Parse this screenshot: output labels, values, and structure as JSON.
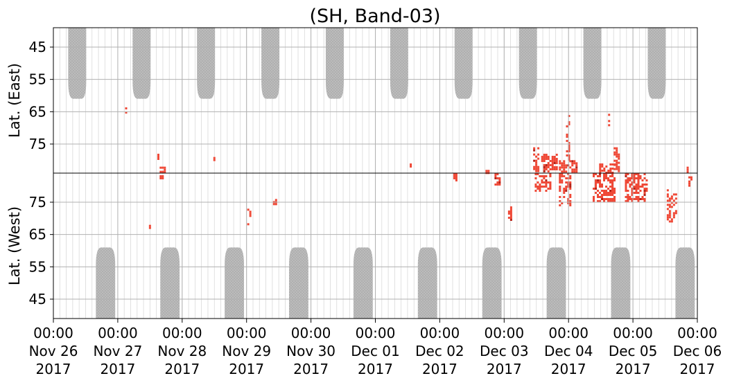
{
  "chart_data": {
    "type": "heatmap",
    "title": "(SH, Band-03)",
    "panels": [
      {
        "name": "east",
        "ylabel": "Lat. (East)",
        "yticks": [
          "45",
          "55",
          "65",
          "75"
        ],
        "ylim_top_to_bottom": [
          39,
          84
        ]
      },
      {
        "name": "west",
        "ylabel": "Lat. (West)",
        "yticks": [
          "75",
          "65",
          "55",
          "45"
        ],
        "ylim_top_to_bottom": [
          84,
          39
        ]
      }
    ],
    "x_ticks": [
      {
        "time": "00:00",
        "date": "Nov 26",
        "year": "2017"
      },
      {
        "time": "00:00",
        "date": "Nov 27",
        "year": "2017"
      },
      {
        "time": "00:00",
        "date": "Nov 28",
        "year": "2017"
      },
      {
        "time": "00:00",
        "date": "Nov 29",
        "year": "2017"
      },
      {
        "time": "00:00",
        "date": "Nov 30",
        "year": "2017"
      },
      {
        "time": "00:00",
        "date": "Dec 01",
        "year": "2017"
      },
      {
        "time": "00:00",
        "date": "Dec 02",
        "year": "2017"
      },
      {
        "time": "00:00",
        "date": "Dec 03",
        "year": "2017"
      },
      {
        "time": "00:00",
        "date": "Dec 04",
        "year": "2017"
      },
      {
        "time": "00:00",
        "date": "Dec 05",
        "year": "2017"
      },
      {
        "time": "00:00",
        "date": "Dec 06",
        "year": "2017"
      }
    ],
    "grid": true,
    "no_data_color": "#bdbdbd",
    "echo_color": "#ef4836",
    "echo_color_strong": "#b52318",
    "no_data_regions": {
      "east": [
        {
          "center_day": 0.37,
          "half_width_days": 0.14,
          "min_lat": 61
        },
        {
          "center_day": 1.37,
          "half_width_days": 0.14,
          "min_lat": 61
        },
        {
          "center_day": 2.37,
          "half_width_days": 0.14,
          "min_lat": 61
        },
        {
          "center_day": 3.37,
          "half_width_days": 0.14,
          "min_lat": 61
        },
        {
          "center_day": 4.37,
          "half_width_days": 0.14,
          "min_lat": 61
        },
        {
          "center_day": 5.37,
          "half_width_days": 0.14,
          "min_lat": 61
        },
        {
          "center_day": 6.37,
          "half_width_days": 0.14,
          "min_lat": 61
        },
        {
          "center_day": 7.37,
          "half_width_days": 0.14,
          "min_lat": 61
        },
        {
          "center_day": 8.37,
          "half_width_days": 0.14,
          "min_lat": 61
        },
        {
          "center_day": 9.37,
          "half_width_days": 0.14,
          "min_lat": 61
        }
      ],
      "west": [
        {
          "center_day": 0.81,
          "half_width_days": 0.15,
          "min_lat": 61
        },
        {
          "center_day": 1.81,
          "half_width_days": 0.15,
          "min_lat": 61
        },
        {
          "center_day": 2.81,
          "half_width_days": 0.15,
          "min_lat": 61
        },
        {
          "center_day": 3.81,
          "half_width_days": 0.15,
          "min_lat": 61
        },
        {
          "center_day": 4.81,
          "half_width_days": 0.15,
          "min_lat": 61
        },
        {
          "center_day": 5.81,
          "half_width_days": 0.15,
          "min_lat": 61
        },
        {
          "center_day": 6.81,
          "half_width_days": 0.15,
          "min_lat": 61
        },
        {
          "center_day": 7.81,
          "half_width_days": 0.15,
          "min_lat": 61
        },
        {
          "center_day": 8.81,
          "half_width_days": 0.15,
          "min_lat": 61
        },
        {
          "center_day": 9.81,
          "half_width_days": 0.15,
          "min_lat": 61
        }
      ]
    },
    "echo_patches": [
      {
        "panel": "east",
        "day": 1.13,
        "lat_min": 63,
        "lat_max": 66,
        "width_days": 0.02
      },
      {
        "panel": "east",
        "day": 1.63,
        "lat_min": 78,
        "lat_max": 81,
        "width_days": 0.02
      },
      {
        "panel": "east",
        "day": 1.7,
        "lat_min": 82,
        "lat_max": 84,
        "width_days": 0.1
      },
      {
        "panel": "east",
        "day": 2.5,
        "lat_min": 79,
        "lat_max": 80,
        "width_days": 0.02
      },
      {
        "panel": "east",
        "day": 5.55,
        "lat_min": 81,
        "lat_max": 82,
        "width_days": 0.02
      },
      {
        "panel": "east",
        "day": 6.74,
        "lat_min": 83,
        "lat_max": 84,
        "width_days": 0.06
      },
      {
        "panel": "east",
        "day": 7.5,
        "lat_min": 76,
        "lat_max": 84,
        "width_days": 0.1
      },
      {
        "panel": "east",
        "day": 7.7,
        "lat_min": 78,
        "lat_max": 84,
        "width_days": 0.25
      },
      {
        "panel": "east",
        "day": 8.0,
        "lat_min": 66,
        "lat_max": 80,
        "width_days": 0.08
      },
      {
        "panel": "east",
        "day": 8.0,
        "lat_min": 80,
        "lat_max": 84,
        "width_days": 0.3
      },
      {
        "panel": "east",
        "day": 8.6,
        "lat_min": 81,
        "lat_max": 84,
        "width_days": 0.25
      },
      {
        "panel": "east",
        "day": 8.63,
        "lat_min": 65,
        "lat_max": 70,
        "width_days": 0.03
      },
      {
        "panel": "east",
        "day": 8.75,
        "lat_min": 76,
        "lat_max": 84,
        "width_days": 0.1
      },
      {
        "panel": "east",
        "day": 9.85,
        "lat_min": 82,
        "lat_max": 84,
        "width_days": 0.03
      },
      {
        "panel": "west",
        "day": 1.7,
        "lat_min": 82,
        "lat_max": 84,
        "width_days": 0.1
      },
      {
        "panel": "west",
        "day": 1.5,
        "lat_min": 67,
        "lat_max": 68,
        "width_days": 0.02
      },
      {
        "panel": "west",
        "day": 3.05,
        "lat_min": 68,
        "lat_max": 73,
        "width_days": 0.08
      },
      {
        "panel": "west",
        "day": 3.45,
        "lat_min": 74,
        "lat_max": 76,
        "width_days": 0.08
      },
      {
        "panel": "west",
        "day": 6.9,
        "lat_min": 80,
        "lat_max": 84,
        "width_days": 0.1
      },
      {
        "panel": "west",
        "day": 6.25,
        "lat_min": 81,
        "lat_max": 84,
        "width_days": 0.08
      },
      {
        "panel": "west",
        "day": 7.1,
        "lat_min": 68,
        "lat_max": 75,
        "width_days": 0.08
      },
      {
        "panel": "west",
        "day": 7.6,
        "lat_min": 78,
        "lat_max": 84,
        "width_days": 0.25
      },
      {
        "panel": "west",
        "day": 7.95,
        "lat_min": 74,
        "lat_max": 84,
        "width_days": 0.2
      },
      {
        "panel": "west",
        "day": 8.55,
        "lat_min": 75,
        "lat_max": 84,
        "width_days": 0.35
      },
      {
        "panel": "west",
        "day": 9.05,
        "lat_min": 75,
        "lat_max": 84,
        "width_days": 0.35
      },
      {
        "panel": "west",
        "day": 9.6,
        "lat_min": 69,
        "lat_max": 79,
        "width_days": 0.15
      },
      {
        "panel": "west",
        "day": 9.9,
        "lat_min": 80,
        "lat_max": 83,
        "width_days": 0.08
      }
    ]
  }
}
